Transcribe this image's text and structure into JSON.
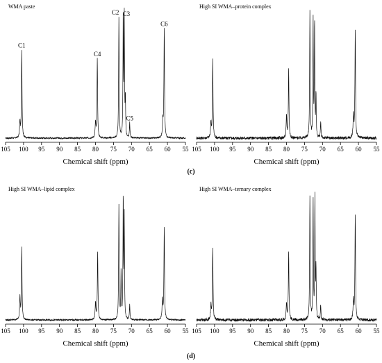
{
  "subfigure_labels": [
    "(c)",
    "(d)"
  ],
  "chart_data": [
    {
      "type": "line",
      "title": "WMA paste",
      "xlabel": "Chemical shift (ppm)",
      "ylabel": "",
      "xlim": [
        105,
        55
      ],
      "x_reversed": true,
      "x_ticks": [
        105,
        100,
        95,
        90,
        85,
        80,
        75,
        70,
        65,
        60,
        55
      ],
      "baseline_noise": "low",
      "peaks": [
        {
          "x": 101.0,
          "y": 0.13,
          "w": 0.12
        },
        {
          "x": 100.5,
          "y": 0.7,
          "w": 0.1
        },
        {
          "x": 80.0,
          "y": 0.12,
          "w": 0.12
        },
        {
          "x": 79.5,
          "y": 0.63,
          "w": 0.1
        },
        {
          "x": 73.5,
          "y": 0.96,
          "w": 0.09
        },
        {
          "x": 72.3,
          "y": 0.97,
          "w": 0.08
        },
        {
          "x": 72.0,
          "y": 0.95,
          "w": 0.08
        },
        {
          "x": 71.7,
          "y": 0.3,
          "w": 0.08
        },
        {
          "x": 70.5,
          "y": 0.12,
          "w": 0.09
        },
        {
          "x": 61.3,
          "y": 0.14,
          "w": 0.12
        },
        {
          "x": 60.9,
          "y": 0.87,
          "w": 0.1
        }
      ],
      "annotations": [
        {
          "text": "C1",
          "x": 100.5
        },
        {
          "text": "C4",
          "x": 79.5
        },
        {
          "text": "C2",
          "x": 73.5
        },
        {
          "text": "C3",
          "x": 72.0
        },
        {
          "text": "C5",
          "x": 70.5
        },
        {
          "text": "C6",
          "x": 60.9
        }
      ]
    },
    {
      "type": "line",
      "title": "High SI WMA–protein complex",
      "xlabel": "Chemical shift (ppm)",
      "ylabel": "",
      "xlim": [
        105,
        55
      ],
      "x_reversed": true,
      "x_ticks": [
        105,
        100,
        95,
        90,
        85,
        80,
        75,
        70,
        65,
        60,
        55
      ],
      "baseline_noise": "medium",
      "peaks": [
        {
          "x": 101.0,
          "y": 0.13,
          "w": 0.12
        },
        {
          "x": 100.5,
          "y": 0.62,
          "w": 0.1
        },
        {
          "x": 80.0,
          "y": 0.17,
          "w": 0.12
        },
        {
          "x": 79.4,
          "y": 0.55,
          "w": 0.1
        },
        {
          "x": 73.5,
          "y": 1.0,
          "w": 0.09
        },
        {
          "x": 72.6,
          "y": 0.95,
          "w": 0.08
        },
        {
          "x": 72.2,
          "y": 0.93,
          "w": 0.08
        },
        {
          "x": 71.8,
          "y": 0.35,
          "w": 0.08
        },
        {
          "x": 70.5,
          "y": 0.13,
          "w": 0.09
        },
        {
          "x": 61.4,
          "y": 0.18,
          "w": 0.12
        },
        {
          "x": 60.9,
          "y": 0.85,
          "w": 0.1
        }
      ]
    },
    {
      "type": "line",
      "title": "High SI WMA–lipid complex",
      "xlabel": "Chemical shift (ppm)",
      "ylabel": "",
      "xlim": [
        105,
        55
      ],
      "x_reversed": true,
      "x_ticks": [
        105,
        100,
        95,
        90,
        85,
        80,
        75,
        70,
        65,
        60,
        55
      ],
      "baseline_noise": "low",
      "peaks": [
        {
          "x": 101.0,
          "y": 0.18,
          "w": 0.12
        },
        {
          "x": 100.5,
          "y": 0.58,
          "w": 0.1
        },
        {
          "x": 80.0,
          "y": 0.14,
          "w": 0.12
        },
        {
          "x": 79.4,
          "y": 0.55,
          "w": 0.1
        },
        {
          "x": 73.5,
          "y": 0.92,
          "w": 0.09
        },
        {
          "x": 72.9,
          "y": 0.38,
          "w": 0.08
        },
        {
          "x": 72.3,
          "y": 0.98,
          "w": 0.08
        },
        {
          "x": 72.0,
          "y": 0.82,
          "w": 0.08
        },
        {
          "x": 70.5,
          "y": 0.12,
          "w": 0.09
        },
        {
          "x": 61.4,
          "y": 0.16,
          "w": 0.12
        },
        {
          "x": 60.9,
          "y": 0.75,
          "w": 0.1
        }
      ]
    },
    {
      "type": "line",
      "title": "High SI WMA–ternary complex",
      "xlabel": "Chemical shift (ppm)",
      "ylabel": "",
      "xlim": [
        105,
        55
      ],
      "x_reversed": true,
      "x_ticks": [
        105,
        100,
        95,
        90,
        85,
        80,
        75,
        70,
        65,
        60,
        55
      ],
      "baseline_noise": "medium",
      "peaks": [
        {
          "x": 101.0,
          "y": 0.12,
          "w": 0.12
        },
        {
          "x": 100.5,
          "y": 0.58,
          "w": 0.1
        },
        {
          "x": 80.0,
          "y": 0.13,
          "w": 0.12
        },
        {
          "x": 79.4,
          "y": 0.56,
          "w": 0.1
        },
        {
          "x": 73.5,
          "y": 1.0,
          "w": 0.09
        },
        {
          "x": 72.6,
          "y": 0.97,
          "w": 0.08
        },
        {
          "x": 72.1,
          "y": 1.0,
          "w": 0.08
        },
        {
          "x": 71.8,
          "y": 0.4,
          "w": 0.08
        },
        {
          "x": 70.5,
          "y": 0.12,
          "w": 0.09
        },
        {
          "x": 61.4,
          "y": 0.16,
          "w": 0.12
        },
        {
          "x": 60.9,
          "y": 0.85,
          "w": 0.1
        }
      ]
    }
  ]
}
